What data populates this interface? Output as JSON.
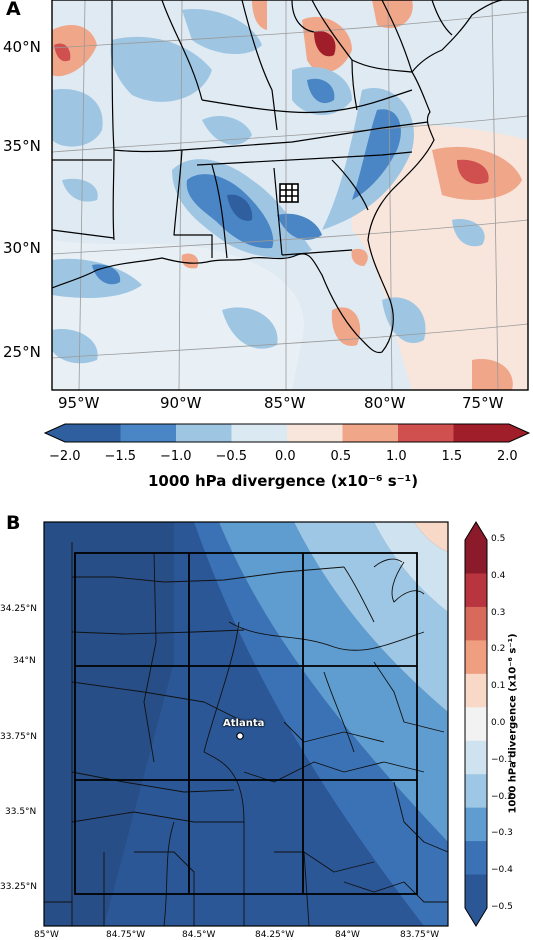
{
  "panel_a": {
    "letter": "A",
    "lat_labels": [
      "40°N",
      "35°N",
      "30°N",
      "25°N"
    ],
    "lon_labels": [
      "95°W",
      "90°W",
      "85°W",
      "80°W",
      "75°W"
    ],
    "colorbar": {
      "ticks": [
        "−2.0",
        "−1.5",
        "−1.0",
        "−0.5",
        "0.0",
        "0.5",
        "1.0",
        "1.5",
        "2.0"
      ],
      "label": "1000 hPa divergence (x10⁻⁶ s⁻¹)",
      "colors": [
        "#2f5f9e",
        "#4a86c5",
        "#9ec6e3",
        "#dbe9f3",
        "#f8e6dd",
        "#f0a688",
        "#d05050",
        "#a01e2a"
      ]
    }
  },
  "panel_b": {
    "letter": "B",
    "lat_labels": [
      "34.25°N",
      "34°N",
      "33.75°N",
      "33.5°N",
      "33.25°N"
    ],
    "lon_labels": [
      "85°W",
      "84.75°W",
      "84.5°W",
      "84.25°W",
      "84°W",
      "83.75°W"
    ],
    "city_label": "Atlanta",
    "colorbar": {
      "ticks": [
        "0.5",
        "0.4",
        "0.3",
        "0.2",
        "0.1",
        "0.0",
        "−0.1",
        "−0.2",
        "−0.3",
        "−0.4",
        "−0.5"
      ],
      "label": "1000 hPa divergence (x10⁻⁶ s⁻¹)",
      "colors": [
        "#8b1a2b",
        "#b8353f",
        "#d76a5a",
        "#ef9e80",
        "#f8d8c6",
        "#f2f2f2",
        "#cfe2f0",
        "#9dc7e4",
        "#5f9ccf",
        "#3a72b5",
        "#2b5797"
      ]
    }
  }
}
